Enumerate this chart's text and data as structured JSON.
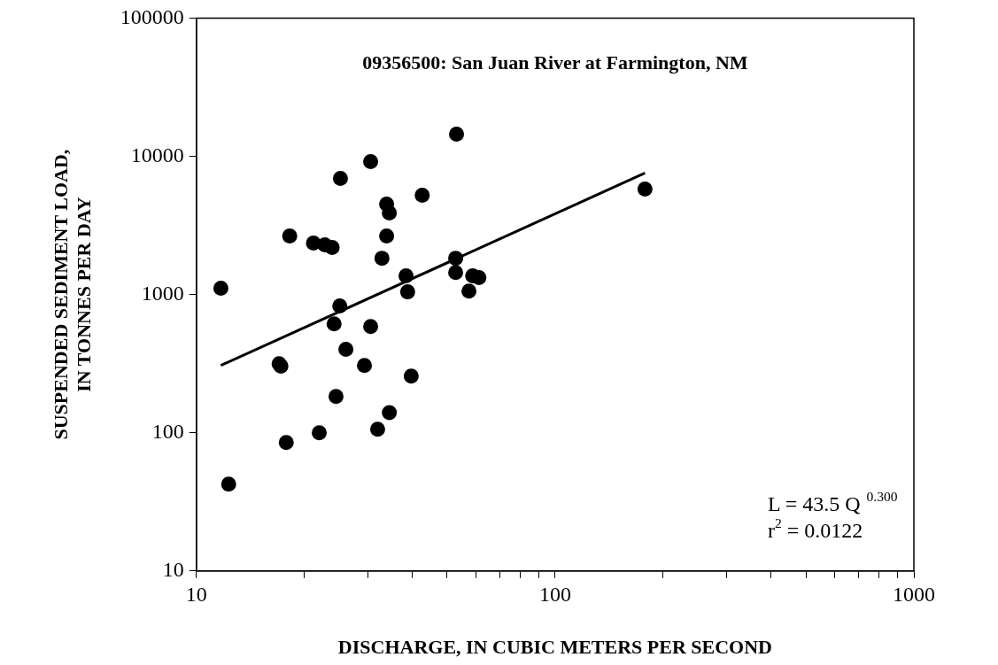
{
  "chart_data": {
    "type": "scatter",
    "title": "09356500: San Juan River at Farmington, NM",
    "xlabel": "DISCHARGE, IN CUBIC METERS PER SECOND",
    "ylabel": "SUSPENDED SEDIMENT LOAD,\nIN TONNES PER DAY",
    "log": "xy",
    "grid": false,
    "legend": false,
    "marker": "circle",
    "xlim": [
      10,
      1000
    ],
    "ylim": [
      10,
      100000
    ],
    "xticks": [
      10,
      {
        "value": 20,
        "label": null
      },
      {
        "value": 30,
        "label": null
      },
      {
        "value": 40,
        "label": null
      },
      {
        "value": 50,
        "label": null
      },
      {
        "value": 60,
        "label": null
      },
      {
        "value": 70,
        "label": null
      },
      {
        "value": 80,
        "label": null
      },
      {
        "value": 90,
        "label": null
      },
      100,
      {
        "value": 200,
        "label": null
      },
      {
        "value": 300,
        "label": null
      },
      {
        "value": 400,
        "label": null
      },
      {
        "value": 500,
        "label": null
      },
      {
        "value": 600,
        "label": null
      },
      {
        "value": 700,
        "label": null
      },
      {
        "value": 800,
        "label": null
      },
      {
        "value": 900,
        "label": null
      },
      1000
    ],
    "yticks": [
      10,
      100,
      1000,
      10000,
      100000
    ],
    "annotations": [
      "L = 43.5 Q $^{0.300}$",
      "r$^{2}$ = 0.0122"
    ],
    "series": [
      {
        "color": "#000000",
        "x": [
          11.7,
          12.3,
          18.2,
          21.2,
          22.8,
          23.9,
          25.2,
          30.6,
          33.9,
          34.5,
          33.9,
          32.9,
          42.6,
          53.1,
          52.8,
          52.8,
          38.4,
          38.8,
          58.9,
          61.3,
          57.5,
          25.1,
          24.2,
          30.6,
          17.0,
          17.2,
          26.1,
          29.4,
          39.7,
          24.5,
          34.5,
          32.0,
          22.0,
          17.8,
          178
        ],
        "values": [
          1110,
          42.5,
          2650,
          2355,
          2285,
          2190,
          6920,
          9160,
          4510,
          3890,
          2650,
          1830,
          5220,
          14450,
          1830,
          1445,
          1365,
          1045,
          1365,
          1325,
          1060,
          826,
          614,
          587,
          316,
          303,
          401,
          307,
          257,
          183,
          140,
          106,
          100,
          85,
          5790
        ]
      },
      {
        "type": "line",
        "color": "#000000",
        "marker": "none",
        "line_style": "solid",
        "x": [
          11.7,
          178
        ],
        "values": [
          307,
          7560
        ]
      }
    ]
  }
}
